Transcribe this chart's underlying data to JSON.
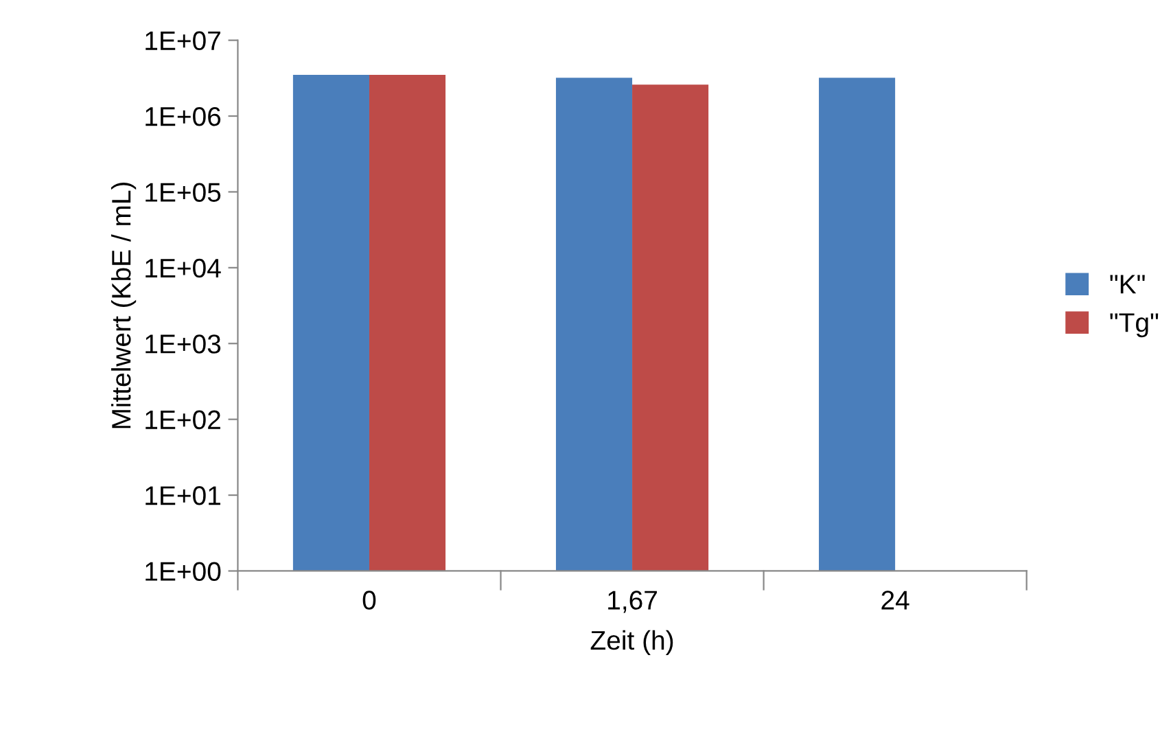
{
  "chart_data": {
    "type": "bar",
    "xlabel": "Zeit (h)",
    "ylabel": "Mittelwert (KbE / mL)",
    "categories": [
      "0",
      "1,67",
      "24"
    ],
    "series": [
      {
        "name": "\"K\"",
        "color": "#4a7ebb",
        "values": [
          3500000,
          3200000,
          3200000
        ]
      },
      {
        "name": "\"Tg\"",
        "color": "#be4b48",
        "values": [
          3500000,
          2600000,
          null
        ]
      }
    ],
    "log": true,
    "ylim": [
      1,
      10000000
    ],
    "yticks": [
      {
        "value": 1,
        "label": "1E+00"
      },
      {
        "value": 10,
        "label": "1E+01"
      },
      {
        "value": 100,
        "label": "1E+02"
      },
      {
        "value": 1000,
        "label": "1E+03"
      },
      {
        "value": 10000,
        "label": "1E+04"
      },
      {
        "value": 100000,
        "label": "1E+05"
      },
      {
        "value": 1000000,
        "label": "1E+06"
      },
      {
        "value": 10000000,
        "label": "1E+07"
      }
    ],
    "grid": false,
    "legend": "right"
  }
}
